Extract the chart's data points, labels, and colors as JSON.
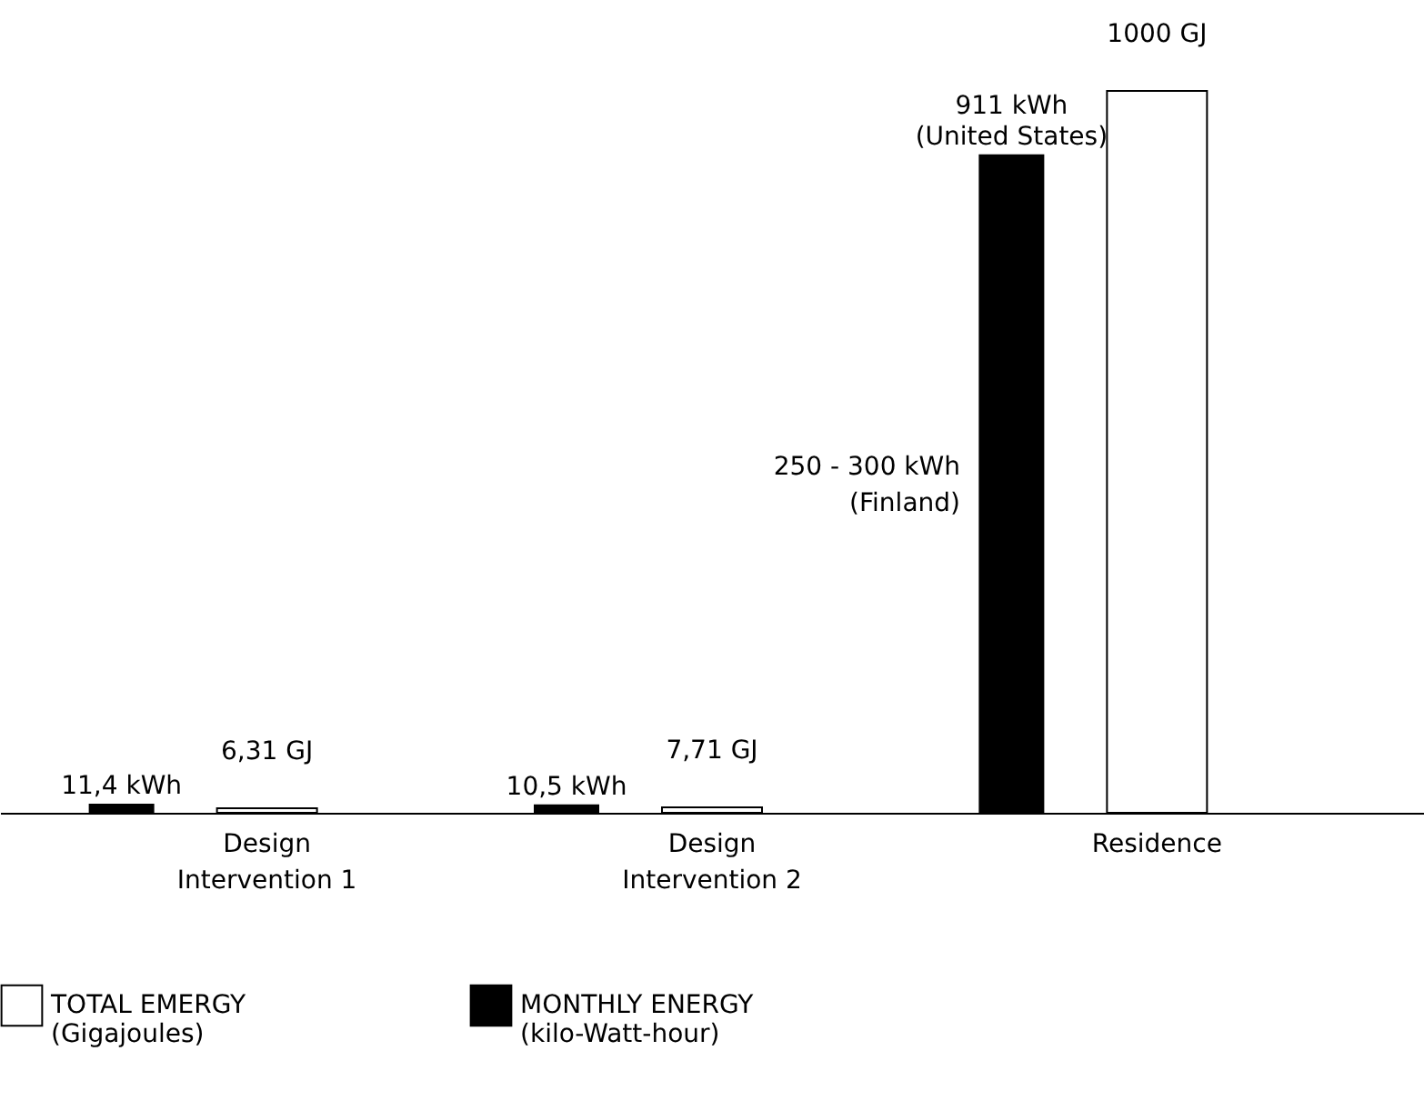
{
  "chart_data": {
    "type": "bar",
    "categories": [
      "Design\nIntervention 1",
      "Design\nIntervention 2",
      "Residence"
    ],
    "series": [
      {
        "name": "TOTAL EMERGY\n(Gigajoules)",
        "color": "#ffffff",
        "values": [
          6.31,
          7.71,
          1000
        ],
        "value_labels": [
          "6,31 GJ",
          "7,71 GJ",
          "1000 GJ"
        ]
      },
      {
        "name": "MONTHLY ENERGY\n(kilo-Watt-hour)",
        "color": "#000000",
        "values": [
          11.4,
          10.5,
          911
        ],
        "value_labels": [
          "11,4 kWh",
          "10,5 kWh",
          "911 kWh\n(United States)"
        ]
      }
    ],
    "annotations": [
      "250 - 300 kWh\n(Finland)"
    ],
    "tick_labels": "x",
    "legend": "bottom",
    "grid": false
  }
}
